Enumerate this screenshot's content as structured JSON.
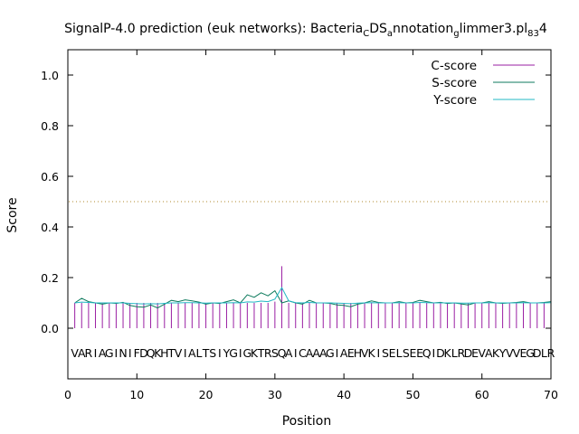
{
  "chart_data": {
    "type": "line",
    "title": {
      "parts": [
        {
          "text": "SignalP-4.0 prediction (euk networks): Bacteria",
          "sub": false
        },
        {
          "text": "C",
          "sub": true
        },
        {
          "text": "DS",
          "sub": false
        },
        {
          "text": "a",
          "sub": true
        },
        {
          "text": "nnotation",
          "sub": false
        },
        {
          "text": "g",
          "sub": true
        },
        {
          "text": "limmer3.pl",
          "sub": false
        },
        {
          "text": "83",
          "sub": true
        },
        {
          "text": "4",
          "sub": false
        }
      ]
    },
    "xlabel": "Position",
    "ylabel": "Score",
    "xlim": [
      0,
      70
    ],
    "ylim": [
      -0.2,
      1.1
    ],
    "x_ticks": [
      0,
      10,
      20,
      30,
      40,
      50,
      60,
      70
    ],
    "y_ticks": [
      0.0,
      0.2,
      0.4,
      0.6,
      0.8,
      1.0
    ],
    "x_tick_labels": [
      "0",
      "10",
      "20",
      "30",
      "40",
      "50",
      "60",
      "70"
    ],
    "y_tick_labels": [
      "0.0",
      "0.2",
      "0.4",
      "0.6",
      "0.8",
      "1.0"
    ],
    "threshold": 0.5,
    "legend_position": "top-right",
    "sequence": "VARIAGINIFDQKHTVIALTSIYGIGKTRSQAICAAAGIAEHVKISELSEEQIDKLRDEVAKYVVEGDLR",
    "sequence_y": -0.1,
    "series": [
      {
        "name": "C-score",
        "style": "impulses",
        "color": "#9a1fa3",
        "values": [
          0.1,
          0.1,
          0.1,
          0.1,
          0.1,
          0.1,
          0.1,
          0.1,
          0.1,
          0.1,
          0.1,
          0.1,
          0.1,
          0.1,
          0.1,
          0.1,
          0.1,
          0.1,
          0.1,
          0.1,
          0.1,
          0.1,
          0.1,
          0.1,
          0.1,
          0.1,
          0.1,
          0.1,
          0.1,
          0.105,
          0.245,
          0.1,
          0.1,
          0.1,
          0.1,
          0.1,
          0.1,
          0.1,
          0.1,
          0.1,
          0.1,
          0.1,
          0.1,
          0.1,
          0.1,
          0.1,
          0.1,
          0.1,
          0.1,
          0.1,
          0.1,
          0.1,
          0.1,
          0.1,
          0.1,
          0.1,
          0.1,
          0.1,
          0.1,
          0.1,
          0.1,
          0.1,
          0.1,
          0.1,
          0.1,
          0.1,
          0.1,
          0.1,
          0.1,
          0.1
        ]
      },
      {
        "name": "S-score",
        "style": "line",
        "color": "#0c7a5c",
        "values": [
          0.1,
          0.118,
          0.105,
          0.1,
          0.095,
          0.1,
          0.098,
          0.102,
          0.09,
          0.085,
          0.083,
          0.092,
          0.08,
          0.095,
          0.11,
          0.105,
          0.112,
          0.108,
          0.103,
          0.095,
          0.1,
          0.098,
          0.105,
          0.112,
          0.1,
          0.132,
          0.122,
          0.14,
          0.128,
          0.148,
          0.1,
          0.108,
          0.1,
          0.095,
          0.11,
          0.1,
          0.1,
          0.098,
          0.092,
          0.09,
          0.085,
          0.095,
          0.1,
          0.108,
          0.102,
          0.1,
          0.1,
          0.105,
          0.1,
          0.102,
          0.11,
          0.105,
          0.1,
          0.102,
          0.098,
          0.1,
          0.096,
          0.092,
          0.1,
          0.1,
          0.105,
          0.1,
          0.098,
          0.1,
          0.102,
          0.105,
          0.1,
          0.1,
          0.102,
          0.105
        ]
      },
      {
        "name": "Y-score",
        "style": "line",
        "color": "#23b8c4",
        "values": [
          0.1,
          0.103,
          0.102,
          0.1,
          0.1,
          0.1,
          0.1,
          0.1,
          0.098,
          0.097,
          0.096,
          0.097,
          0.096,
          0.098,
          0.1,
          0.1,
          0.101,
          0.101,
          0.1,
          0.099,
          0.1,
          0.1,
          0.1,
          0.101,
          0.1,
          0.104,
          0.103,
          0.107,
          0.105,
          0.115,
          0.16,
          0.108,
          0.101,
          0.1,
          0.102,
          0.1,
          0.1,
          0.1,
          0.099,
          0.098,
          0.097,
          0.099,
          0.1,
          0.101,
          0.1,
          0.1,
          0.1,
          0.101,
          0.1,
          0.1,
          0.102,
          0.101,
          0.1,
          0.1,
          0.1,
          0.1,
          0.099,
          0.099,
          0.1,
          0.1,
          0.101,
          0.1,
          0.1,
          0.1,
          0.1,
          0.101,
          0.1,
          0.1,
          0.1,
          0.101
        ]
      }
    ]
  }
}
